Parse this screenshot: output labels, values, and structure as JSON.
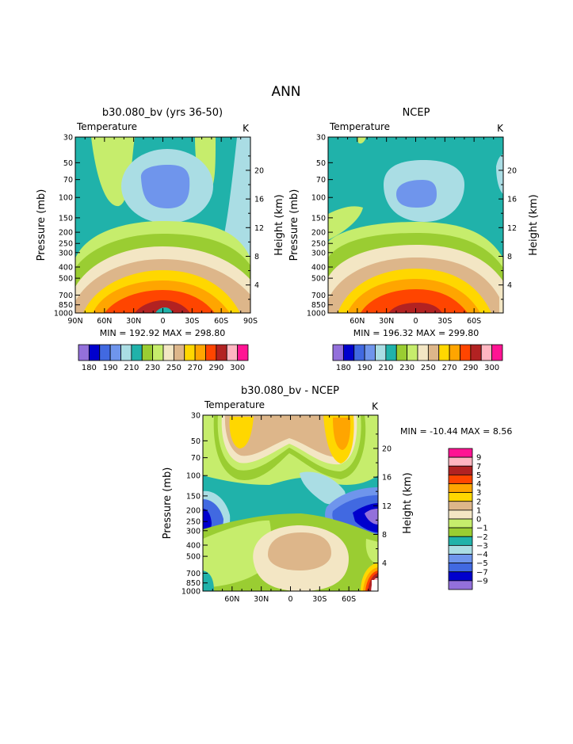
{
  "page_title": "ANN",
  "colors": {
    "c_m9": "#9370db",
    "c_m7": "#0000cd",
    "c_m5": "#4169e1",
    "c_m4": "#6f95ec",
    "c_m3": "#aadde4",
    "c_m2": "#20b2aa",
    "c_m1": "#9acd32",
    "c_0": "#c6ed6c",
    "c_1": "#f3e6c4",
    "c_2": "#ddb68a",
    "c_3": "#ffd700",
    "c_4": "#ffa500",
    "c_5": "#ff4500",
    "c_7": "#b22222",
    "c_9": "#ffb6c1",
    "c_top": "#ff1493"
  },
  "panels": [
    {
      "title": "b30.080_bv (yrs 36-50)",
      "variable": "Temperature",
      "units": "K",
      "ylabel": "Pressure (mb)",
      "ylabel_right": "Height (km)",
      "pressure_ticks": [
        "30",
        "50",
        "70",
        "100",
        "150",
        "200",
        "250",
        "300",
        "400",
        "500",
        "700",
        "850",
        "1000"
      ],
      "height_ticks": [
        "20",
        "16",
        "12",
        "8",
        "4"
      ],
      "lat_ticks": [
        "90N",
        "60N",
        "30N",
        "0",
        "30S",
        "60S",
        "90S"
      ],
      "min_max": "MIN = 192.92   MAX = 298.80",
      "colorbar_labels": [
        "180",
        "190",
        "210",
        "230",
        "250",
        "270",
        "290",
        "300"
      ]
    },
    {
      "title": "NCEP",
      "variable": "Temperature",
      "units": "K",
      "ylabel": "Pressure (mb)",
      "ylabel_right": "Height (km)",
      "pressure_ticks": [
        "30",
        "50",
        "70",
        "100",
        "150",
        "200",
        "250",
        "300",
        "400",
        "500",
        "700",
        "850",
        "1000"
      ],
      "height_ticks": [
        "20",
        "16",
        "12",
        "8",
        "4"
      ],
      "lat_ticks": [
        "60N",
        "30N",
        "0",
        "30S",
        "60S"
      ],
      "min_max": "MIN = 196.32   MAX = 299.80",
      "colorbar_labels": [
        "180",
        "190",
        "210",
        "230",
        "250",
        "270",
        "290",
        "300"
      ]
    },
    {
      "title": "b30.080_bv - NCEP",
      "variable": "Temperature",
      "units": "K",
      "ylabel": "Pressure (mb)",
      "ylabel_right": "Height (km)",
      "pressure_ticks": [
        "30",
        "50",
        "70",
        "100",
        "150",
        "200",
        "250",
        "300",
        "400",
        "500",
        "700",
        "850",
        "1000"
      ],
      "height_ticks": [
        "20",
        "16",
        "12",
        "8",
        "4"
      ],
      "lat_ticks": [
        "60N",
        "30N",
        "0",
        "30S",
        "60S"
      ],
      "min_max": "MIN = -10.44   MAX =    8.56",
      "legend_labels": [
        "9",
        "7",
        "5",
        "4",
        "3",
        "2",
        "1",
        "0",
        "-1",
        "-2",
        "-3",
        "-4",
        "-5",
        "-7",
        "-9"
      ]
    }
  ],
  "chart_data": [
    {
      "type": "heatmap",
      "title": "b30.080_bv (yrs 36-50)",
      "subtitle": "Temperature",
      "units": "K",
      "ylabel": "Pressure (mb)",
      "y2label": "Height (km)",
      "x_ticks": [
        "90N",
        "60N",
        "30N",
        "0",
        "30S",
        "60S",
        "90S"
      ],
      "y_ticks": [
        30,
        50,
        70,
        100,
        150,
        200,
        250,
        300,
        400,
        500,
        700,
        850,
        1000
      ],
      "y_scale": "log",
      "ylim": [
        1000,
        30
      ],
      "min": 192.92,
      "max": 298.8,
      "contour_levels": [
        180,
        190,
        200,
        210,
        220,
        230,
        240,
        250,
        260,
        270,
        280,
        290,
        300
      ]
    },
    {
      "type": "heatmap",
      "title": "NCEP",
      "subtitle": "Temperature",
      "units": "K",
      "ylabel": "Pressure (mb)",
      "y2label": "Height (km)",
      "x_ticks": [
        "60N",
        "30N",
        "0",
        "30S",
        "60S"
      ],
      "y_ticks": [
        30,
        50,
        70,
        100,
        150,
        200,
        250,
        300,
        400,
        500,
        700,
        850,
        1000
      ],
      "y_scale": "log",
      "ylim": [
        1000,
        30
      ],
      "min": 196.32,
      "max": 299.8,
      "contour_levels": [
        180,
        190,
        200,
        210,
        220,
        230,
        240,
        250,
        260,
        270,
        280,
        290,
        300
      ]
    },
    {
      "type": "heatmap",
      "title": "b30.080_bv - NCEP",
      "subtitle": "Temperature",
      "units": "K",
      "ylabel": "Pressure (mb)",
      "y2label": "Height (km)",
      "x_ticks": [
        "60N",
        "30N",
        "0",
        "30S",
        "60S"
      ],
      "y_ticks": [
        30,
        50,
        70,
        100,
        150,
        200,
        250,
        300,
        400,
        500,
        700,
        850,
        1000
      ],
      "y_scale": "log",
      "ylim": [
        1000,
        30
      ],
      "min": -10.44,
      "max": 8.56,
      "contour_levels": [
        -9,
        -7,
        -5,
        -4,
        -3,
        -2,
        -1,
        0,
        1,
        2,
        3,
        4,
        5,
        7,
        9
      ]
    }
  ]
}
